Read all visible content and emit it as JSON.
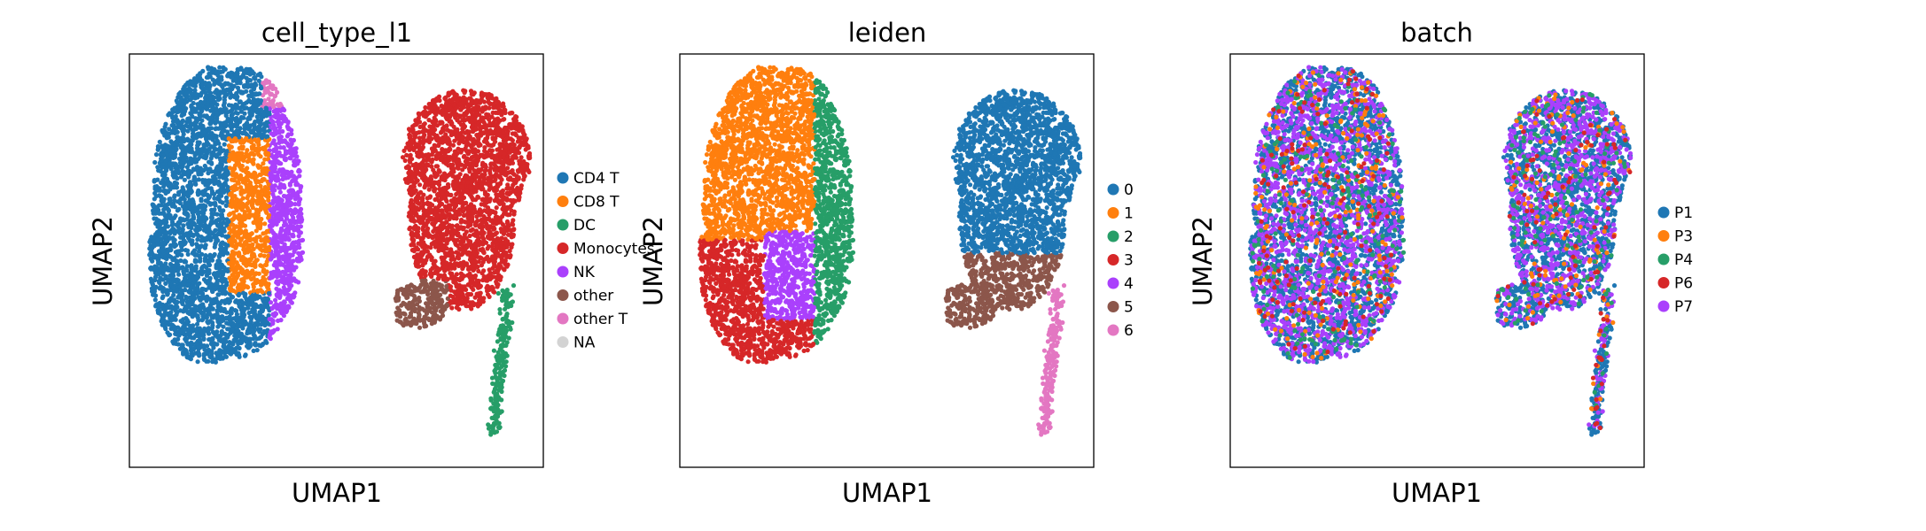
{
  "figure": {
    "panels": [
      {
        "title": "cell_type_l1",
        "xlabel": "UMAP1",
        "ylabel": "UMAP2",
        "legend": [
          {
            "label": "CD4 T",
            "color": "#1f77b4"
          },
          {
            "label": "CD8 T",
            "color": "#ff7f0e"
          },
          {
            "label": "DC",
            "color": "#279e68"
          },
          {
            "label": "Monocytes",
            "color": "#d62728"
          },
          {
            "label": "NK",
            "color": "#aa40fc"
          },
          {
            "label": "other",
            "color": "#8c564b"
          },
          {
            "label": "other T",
            "color": "#e377c2"
          },
          {
            "label": "NA",
            "color": "#d3d3d3"
          }
        ]
      },
      {
        "title": "leiden",
        "xlabel": "UMAP1",
        "ylabel": "UMAP2",
        "legend": [
          {
            "label": "0",
            "color": "#1f77b4"
          },
          {
            "label": "1",
            "color": "#ff7f0e"
          },
          {
            "label": "2",
            "color": "#279e68"
          },
          {
            "label": "3",
            "color": "#d62728"
          },
          {
            "label": "4",
            "color": "#aa40fc"
          },
          {
            "label": "5",
            "color": "#8c564b"
          },
          {
            "label": "6",
            "color": "#e377c2"
          }
        ]
      },
      {
        "title": "batch",
        "xlabel": "UMAP1",
        "ylabel": "UMAP2",
        "legend": [
          {
            "label": "P1",
            "color": "#1f77b4"
          },
          {
            "label": "P3",
            "color": "#ff7f0e"
          },
          {
            "label": "P4",
            "color": "#279e68"
          },
          {
            "label": "P6",
            "color": "#d62728"
          },
          {
            "label": "P7",
            "color": "#aa40fc"
          }
        ]
      }
    ]
  },
  "chart_data": [
    {
      "type": "scatter",
      "title": "cell_type_l1",
      "xlabel": "UMAP1",
      "ylabel": "UMAP2",
      "grid": false,
      "legend_position": "right",
      "categories": [
        "CD4 T",
        "CD8 T",
        "DC",
        "Monocytes",
        "NK",
        "other",
        "other T",
        "NA"
      ],
      "regions": [
        {
          "category": "CD4 T",
          "description": "left island, most of the cluster"
        },
        {
          "category": "CD8 T",
          "description": "left island, center-right band"
        },
        {
          "category": "NK",
          "description": "left island, right edge"
        },
        {
          "category": "other T",
          "description": "left island, top-right lobe"
        },
        {
          "category": "Monocytes",
          "description": "right island, main body"
        },
        {
          "category": "other",
          "description": "right island, small lower-left patch"
        },
        {
          "category": "DC",
          "description": "thin tail extending down at bottom-right"
        }
      ]
    },
    {
      "type": "scatter",
      "title": "leiden",
      "xlabel": "UMAP1",
      "ylabel": "UMAP2",
      "grid": false,
      "legend_position": "right",
      "categories": [
        "0",
        "1",
        "2",
        "3",
        "4",
        "5",
        "6"
      ],
      "regions": [
        {
          "category": "1",
          "description": "left island, upper-left"
        },
        {
          "category": "3",
          "description": "left island, lower-left"
        },
        {
          "category": "4",
          "description": "left island, center-lower"
        },
        {
          "category": "2",
          "description": "left island, right strip"
        },
        {
          "category": "0",
          "description": "right island, main body"
        },
        {
          "category": "5",
          "description": "right island, lower patch"
        },
        {
          "category": "6",
          "description": "thin tail at bottom-right"
        }
      ]
    },
    {
      "type": "scatter",
      "title": "batch",
      "xlabel": "UMAP1",
      "ylabel": "UMAP2",
      "grid": false,
      "legend_position": "right",
      "categories": [
        "P1",
        "P3",
        "P4",
        "P6",
        "P7"
      ],
      "regions": [
        {
          "category": "P1",
          "description": "mixed throughout both islands (dominant)"
        },
        {
          "category": "P7",
          "description": "mixed throughout both islands"
        },
        {
          "category": "P3",
          "description": "sparse, mixed"
        },
        {
          "category": "P4",
          "description": "sparse, mixed"
        },
        {
          "category": "P6",
          "description": "sparse, mixed"
        }
      ]
    }
  ]
}
